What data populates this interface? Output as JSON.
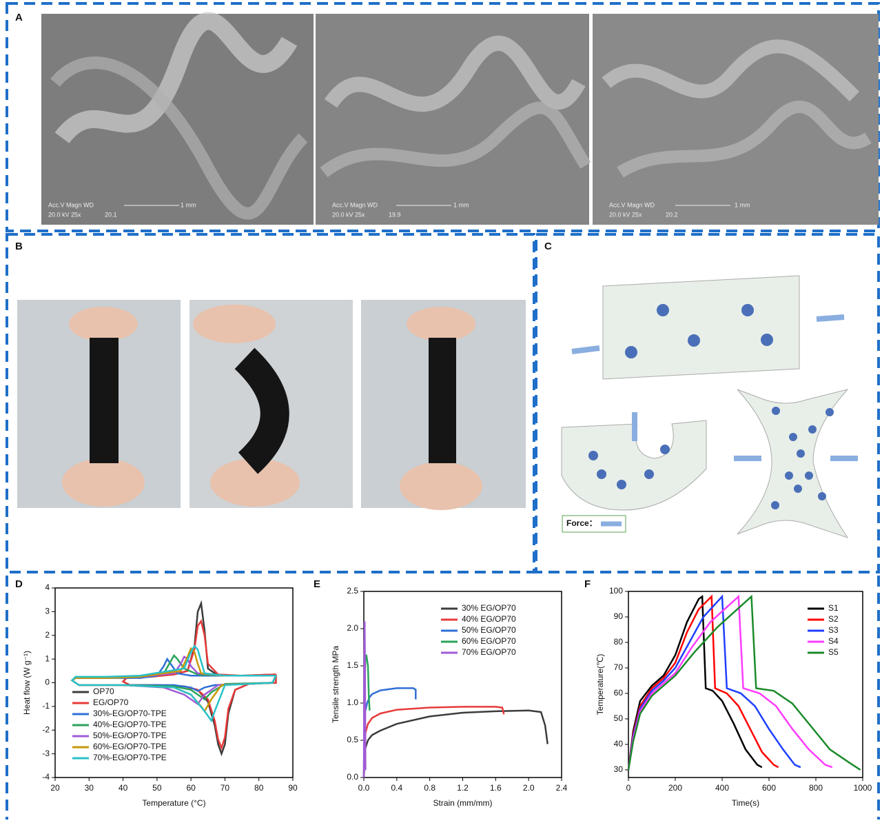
{
  "panels": {
    "a": "A",
    "b": "B",
    "c": "C",
    "d": "D",
    "e": "E",
    "f": "F"
  },
  "sem_images": [
    {
      "header": "Acc.V  Magn    WD",
      "settings": "20.0 kV 25x",
      "wd": "20.1",
      "scale": "1 mm"
    },
    {
      "header": "Acc.V  Magn    WD",
      "settings": "20.0 kV 25x",
      "wd": "19.9",
      "scale": "1 mm"
    },
    {
      "header": "Acc.V  Magn    WD",
      "settings": "20.0 kV 25x",
      "wd": "20.2",
      "scale": "1 mm"
    }
  ],
  "diagram": {
    "force_label": "Force："
  },
  "chart_data": [
    {
      "type": "line",
      "x_label": "Temperature (°C)",
      "y_label": "Heat flow (W g⁻¹)",
      "legend": "lower left",
      "xlim": [
        20,
        90
      ],
      "xticks": [
        20,
        30,
        40,
        50,
        60,
        70,
        80,
        90
      ],
      "ylim": [
        -4,
        4
      ],
      "yticks": [
        -4,
        -3,
        -2,
        -1,
        0,
        1,
        2,
        3,
        4
      ],
      "series": [
        {
          "name": "OP70",
          "color": "#3c3c3c",
          "x": [
            85,
            75,
            68,
            65,
            64,
            63,
            62,
            61,
            59,
            55,
            48,
            41,
            40,
            42,
            50,
            58,
            62,
            65,
            67,
            68,
            69,
            70,
            71,
            73,
            77,
            85,
            85
          ],
          "values": [
            0.35,
            0.3,
            0.3,
            0.6,
            2.2,
            3.35,
            3.0,
            1.5,
            0.5,
            0.35,
            0.25,
            0.2,
            0.05,
            -0.1,
            -0.1,
            -0.15,
            -0.3,
            -0.8,
            -1.8,
            -2.6,
            -3.0,
            -2.6,
            -1.3,
            -0.3,
            -0.05,
            0,
            0.35
          ]
        },
        {
          "name": "EG/OP70",
          "color": "#e83a3a",
          "x": [
            85,
            75,
            68,
            65,
            64,
            63,
            62,
            61,
            59,
            55,
            48,
            41,
            40,
            42,
            50,
            58,
            62,
            65,
            67,
            68,
            69,
            70,
            71,
            73,
            77,
            85,
            85
          ],
          "values": [
            0.35,
            0.3,
            0.35,
            0.8,
            2.0,
            2.6,
            2.4,
            1.4,
            0.5,
            0.35,
            0.25,
            0.2,
            0.05,
            -0.1,
            -0.1,
            -0.15,
            -0.3,
            -0.7,
            -1.6,
            -2.4,
            -2.75,
            -2.3,
            -1.1,
            -0.3,
            -0.05,
            0,
            0.35
          ]
        },
        {
          "name": "30%-EG/OP70-TPE",
          "color": "#2f6fd6",
          "x": [
            85,
            70,
            60,
            56,
            54,
            53,
            52,
            50,
            45,
            35,
            26,
            25,
            27,
            40,
            55,
            60,
            62,
            64,
            67,
            75,
            84,
            85
          ],
          "values": [
            0.3,
            0.3,
            0.3,
            0.4,
            0.8,
            1.0,
            0.7,
            0.3,
            0.2,
            0.2,
            0.2,
            0.1,
            -0.1,
            -0.1,
            -0.1,
            -0.2,
            -0.35,
            -0.2,
            -0.1,
            -0.05,
            0,
            0.3
          ]
        },
        {
          "name": "40%-EG/OP70-TPE",
          "color": "#2aa35a",
          "x": [
            85,
            70,
            62,
            58,
            56,
            55,
            54,
            52,
            45,
            35,
            26,
            25,
            27,
            40,
            55,
            60,
            63,
            64,
            66,
            70,
            84,
            85
          ],
          "values": [
            0.3,
            0.3,
            0.35,
            0.6,
            1.0,
            1.15,
            0.9,
            0.4,
            0.25,
            0.2,
            0.2,
            0.1,
            -0.1,
            -0.1,
            -0.15,
            -0.3,
            -0.6,
            -0.7,
            -0.4,
            -0.05,
            0,
            0.3
          ]
        },
        {
          "name": "50%-EG/OP70-TPE",
          "color": "#a05ad6",
          "x": [
            85,
            70,
            62,
            60,
            59,
            58,
            57,
            55,
            45,
            35,
            26,
            25,
            27,
            40,
            52,
            58,
            61,
            62,
            64,
            68,
            84,
            85
          ],
          "values": [
            0.3,
            0.3,
            0.4,
            0.7,
            1.0,
            1.1,
            0.8,
            0.4,
            0.25,
            0.2,
            0.2,
            0.1,
            -0.1,
            -0.1,
            -0.2,
            -0.5,
            -0.8,
            -0.9,
            -0.5,
            -0.1,
            0,
            0.3
          ]
        },
        {
          "name": "60%-EG/OP70-TPE",
          "color": "#c8980a",
          "x": [
            85,
            70,
            63,
            62,
            61,
            60,
            59,
            57,
            45,
            35,
            26,
            25,
            27,
            40,
            55,
            60,
            63,
            64,
            66,
            69,
            84,
            85
          ],
          "values": [
            0.3,
            0.3,
            0.4,
            0.8,
            1.3,
            1.45,
            1.1,
            0.5,
            0.25,
            0.2,
            0.2,
            0.1,
            -0.1,
            -0.1,
            -0.2,
            -0.5,
            -1.0,
            -1.2,
            -0.7,
            -0.1,
            0,
            0.3
          ]
        },
        {
          "name": "70%-EG/OP70-TPE",
          "color": "#28c0c8",
          "x": [
            85,
            70,
            64,
            63,
            62,
            61,
            60,
            58,
            45,
            35,
            26,
            25,
            27,
            40,
            55,
            60,
            64,
            66,
            67,
            70,
            84,
            85
          ],
          "values": [
            0.3,
            0.3,
            0.4,
            0.9,
            1.4,
            1.55,
            1.3,
            0.6,
            0.3,
            0.25,
            0.25,
            0.1,
            -0.1,
            -0.1,
            -0.2,
            -0.5,
            -1.2,
            -1.6,
            -1.2,
            -0.1,
            0,
            0.3
          ]
        }
      ]
    },
    {
      "type": "line",
      "x_label": "Strain (mm/mm)",
      "y_label": "Tensile strength  MPa",
      "legend": "upper right",
      "xlim": [
        0,
        2.4
      ],
      "xticks": [
        {
          "value": 0,
          "label": "0.0"
        },
        0.4,
        0.8,
        1.2,
        1.6,
        {
          "value": 2,
          "label": "2.0"
        },
        2.4
      ],
      "ylim": [
        0,
        2.5
      ],
      "yticks": [
        {
          "value": 0,
          "label": "0.0"
        },
        0.5,
        {
          "value": 1,
          "label": "1.0"
        },
        1.5,
        {
          "value": 2,
          "label": "2.0"
        },
        2.5
      ],
      "series": [
        {
          "name": "30% EG/OP70",
          "color": "#3c3c3c",
          "x": [
            0,
            0.02,
            0.05,
            0.1,
            0.2,
            0.4,
            0.8,
            1.2,
            1.6,
            2.0,
            2.15,
            2.2,
            2.23
          ],
          "values": [
            0,
            0.4,
            0.5,
            0.57,
            0.63,
            0.72,
            0.82,
            0.87,
            0.89,
            0.9,
            0.88,
            0.7,
            0.45
          ]
        },
        {
          "name": "40% EG/OP70",
          "color": "#e83a3a",
          "x": [
            0,
            0.02,
            0.05,
            0.1,
            0.2,
            0.4,
            0.8,
            1.2,
            1.6,
            1.68,
            1.7
          ],
          "values": [
            0,
            0.6,
            0.72,
            0.8,
            0.86,
            0.91,
            0.94,
            0.95,
            0.95,
            0.94,
            0.85
          ]
        },
        {
          "name": "50% EG/OP70",
          "color": "#2f6fd6",
          "x": [
            0.02,
            0.04,
            0.07,
            0.1,
            0.2,
            0.4,
            0.6,
            0.63,
            0.63
          ],
          "values": [
            0.9,
            1.0,
            1.08,
            1.12,
            1.17,
            1.2,
            1.2,
            1.18,
            1.05
          ]
        },
        {
          "name": "60% EG/OP70",
          "color": "#2aa35a",
          "x": [
            0,
            0.01,
            0.02,
            0.03,
            0.05,
            0.06,
            0.07
          ],
          "values": [
            0,
            1.2,
            1.6,
            1.65,
            1.5,
            1.1,
            0.9
          ]
        },
        {
          "name": "70% EG/OP70",
          "color": "#a05ad6",
          "x": [
            0,
            0.005,
            0.01,
            0.015,
            0.02
          ],
          "values": [
            0,
            1.5,
            2.1,
            1.4,
            0.1
          ]
        }
      ]
    },
    {
      "type": "line",
      "x_label": "Time(s)",
      "y_label": "Temperature(℃)",
      "legend": "upper right",
      "xlim": [
        0,
        1000
      ],
      "xticks": [
        0,
        200,
        400,
        600,
        800,
        1000
      ],
      "ylim": [
        27,
        100
      ],
      "yticks": [
        30,
        40,
        50,
        60,
        70,
        80,
        90,
        100
      ],
      "series": [
        {
          "name": "S1",
          "color": "#000000",
          "x": [
            0,
            20,
            50,
            100,
            150,
            200,
            250,
            300,
            315,
            330,
            360,
            400,
            450,
            500,
            550,
            570
          ],
          "values": [
            30,
            45,
            57,
            63,
            67,
            75,
            88,
            97,
            98,
            62,
            61,
            57,
            48,
            38,
            32,
            31
          ]
        },
        {
          "name": "S2",
          "color": "#ff0000",
          "x": [
            0,
            20,
            50,
            100,
            150,
            200,
            250,
            300,
            355,
            370,
            420,
            470,
            520,
            570,
            620,
            640
          ],
          "values": [
            30,
            44,
            55,
            62,
            66,
            72,
            84,
            93,
            98,
            62,
            60,
            55,
            46,
            37,
            32,
            31
          ]
        },
        {
          "name": "S3",
          "color": "#1f3fff",
          "x": [
            0,
            20,
            50,
            100,
            150,
            200,
            260,
            320,
            400,
            420,
            480,
            540,
            600,
            660,
            710,
            735
          ],
          "values": [
            30,
            43,
            54,
            61,
            65,
            70,
            80,
            90,
            98,
            62,
            60,
            55,
            46,
            38,
            32,
            31
          ]
        },
        {
          "name": "S4",
          "color": "#ff3cff",
          "x": [
            0,
            20,
            50,
            100,
            150,
            200,
            270,
            350,
            470,
            490,
            560,
            630,
            700,
            770,
            840,
            870
          ],
          "values": [
            30,
            42,
            53,
            60,
            64,
            68,
            78,
            88,
            98,
            62,
            60,
            55,
            46,
            38,
            32,
            31
          ]
        },
        {
          "name": "S5",
          "color": "#1a8a2a",
          "x": [
            0,
            20,
            50,
            100,
            150,
            200,
            280,
            380,
            525,
            545,
            620,
            700,
            780,
            860,
            940,
            990
          ],
          "values": [
            30,
            41,
            52,
            59,
            63,
            67,
            76,
            86,
            98,
            62,
            61,
            56,
            47,
            38,
            33,
            30
          ]
        }
      ]
    }
  ]
}
